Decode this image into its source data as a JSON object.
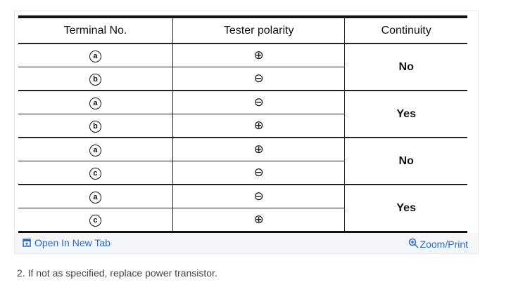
{
  "table": {
    "headers": [
      "Terminal No.",
      "Tester polarity",
      "Continuity"
    ],
    "rows": [
      {
        "terminal": "a",
        "polarity": "⊕"
      },
      {
        "terminal": "b",
        "polarity": "⊖"
      },
      {
        "terminal": "a",
        "polarity": "⊖"
      },
      {
        "terminal": "b",
        "polarity": "⊕"
      },
      {
        "terminal": "a",
        "polarity": "⊕"
      },
      {
        "terminal": "c",
        "polarity": "⊖"
      },
      {
        "terminal": "a",
        "polarity": "⊖"
      },
      {
        "terminal": "c",
        "polarity": "⊕"
      }
    ],
    "continuity": [
      "No",
      "Yes",
      "No",
      "Yes"
    ]
  },
  "footer": {
    "open_label": "Open In New Tab",
    "zoom_label": "Zoom/Print",
    "link_color": "#2a6cc0"
  },
  "note": "2. If not as specified, replace power transistor."
}
